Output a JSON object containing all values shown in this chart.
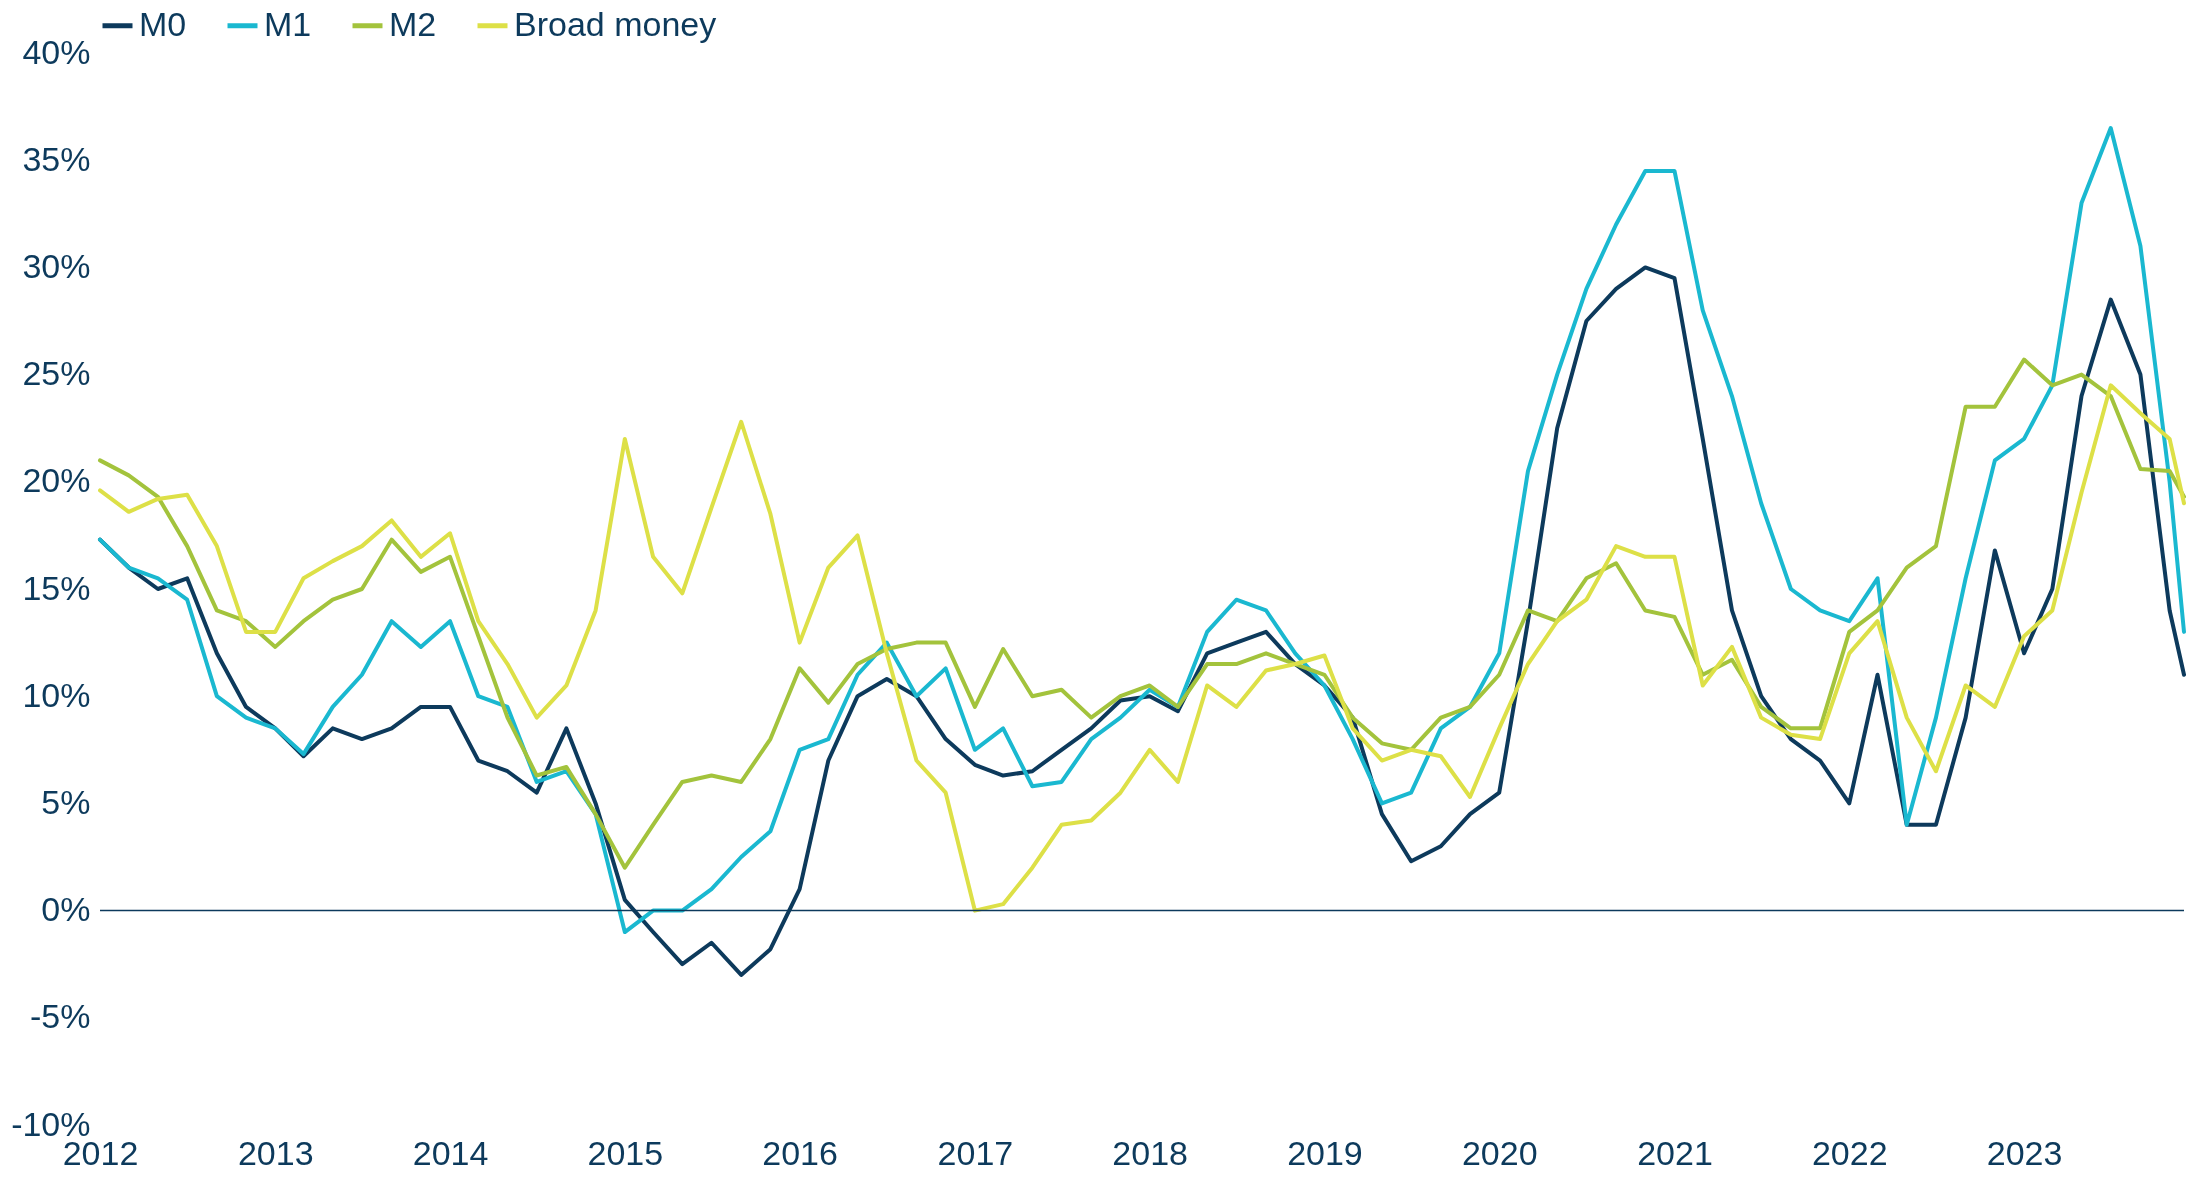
{
  "chart_data": {
    "type": "line",
    "x": [
      "2012-01",
      "2012-03",
      "2012-05",
      "2012-07",
      "2012-09",
      "2012-11",
      "2013-01",
      "2013-03",
      "2013-05",
      "2013-07",
      "2013-09",
      "2013-11",
      "2014-01",
      "2014-03",
      "2014-05",
      "2014-07",
      "2014-09",
      "2014-11",
      "2015-01",
      "2015-03",
      "2015-05",
      "2015-07",
      "2015-09",
      "2015-11",
      "2016-01",
      "2016-03",
      "2016-05",
      "2016-07",
      "2016-09",
      "2016-11",
      "2017-01",
      "2017-03",
      "2017-05",
      "2017-07",
      "2017-09",
      "2017-11",
      "2018-01",
      "2018-03",
      "2018-05",
      "2018-07",
      "2018-09",
      "2018-11",
      "2019-01",
      "2019-03",
      "2019-05",
      "2019-07",
      "2019-09",
      "2019-11",
      "2020-01",
      "2020-03",
      "2020-05",
      "2020-07",
      "2020-09",
      "2020-11",
      "2021-01",
      "2021-03",
      "2021-05",
      "2021-07",
      "2021-09",
      "2021-11",
      "2022-01",
      "2022-03",
      "2022-05",
      "2022-07",
      "2022-09",
      "2022-11",
      "2023-01",
      "2023-03",
      "2023-05",
      "2023-07",
      "2023-09",
      "2023-11",
      "2023-12"
    ],
    "series": [
      {
        "name": "M0",
        "color": "#0d3a5c",
        "values": [
          17.3,
          16.0,
          15.0,
          15.5,
          12.0,
          9.5,
          8.5,
          7.2,
          8.5,
          8.0,
          8.5,
          9.5,
          9.5,
          7.0,
          6.5,
          5.5,
          8.5,
          5.0,
          0.5,
          -1.0,
          -2.5,
          -1.5,
          -3.0,
          -1.8,
          1.0,
          7.0,
          10.0,
          10.8,
          10.0,
          8.0,
          6.8,
          6.3,
          6.5,
          7.5,
          8.5,
          9.8,
          10.0,
          9.3,
          12.0,
          12.5,
          13.0,
          11.5,
          10.5,
          9.0,
          4.5,
          2.3,
          3.0,
          4.5,
          5.5,
          13.5,
          22.5,
          27.5,
          29.0,
          30.0,
          29.5,
          22.0,
          14.0,
          10.0,
          8.0,
          7.0,
          5.0,
          11.0,
          4.0,
          4.0,
          9.0,
          16.8,
          12.0,
          15.0,
          24.0,
          28.5,
          25.0,
          14.0,
          11.0
        ]
      },
      {
        "name": "M1",
        "color": "#1ab8d0",
        "values": [
          17.3,
          16.0,
          15.5,
          14.5,
          10.0,
          9.0,
          8.5,
          7.3,
          9.5,
          11.0,
          13.5,
          12.3,
          13.5,
          10.0,
          9.5,
          6.0,
          6.5,
          4.5,
          -1.0,
          0.0,
          0.0,
          1.0,
          2.5,
          3.7,
          7.5,
          8.0,
          11.0,
          12.5,
          10.0,
          11.3,
          7.5,
          8.5,
          5.8,
          6.0,
          8.0,
          9.0,
          10.3,
          9.5,
          13.0,
          14.5,
          14.0,
          12.0,
          10.5,
          8.0,
          5.0,
          5.5,
          8.5,
          9.5,
          12.0,
          20.5,
          25.0,
          29.0,
          32.0,
          34.5,
          34.5,
          28.0,
          24.0,
          19.0,
          15.0,
          14.0,
          13.5,
          15.5,
          4.0,
          9.0,
          15.5,
          21.0,
          22.0,
          24.5,
          33.0,
          36.5,
          31.0,
          20.0,
          13.0
        ]
      },
      {
        "name": "M2",
        "color": "#a3c33c",
        "values": [
          21.0,
          20.3,
          19.3,
          17.0,
          14.0,
          13.5,
          12.3,
          13.5,
          14.5,
          15.0,
          17.3,
          15.8,
          16.5,
          12.8,
          9.0,
          6.3,
          6.7,
          4.5,
          2.0,
          4.0,
          6.0,
          6.3,
          6.0,
          8.0,
          11.3,
          9.7,
          11.5,
          12.2,
          12.5,
          12.5,
          9.5,
          12.2,
          10.0,
          10.3,
          9.0,
          10.0,
          10.5,
          9.5,
          11.5,
          11.5,
          12.0,
          11.5,
          11.0,
          9.0,
          7.8,
          7.5,
          9.0,
          9.5,
          11.0,
          14.0,
          13.5,
          15.5,
          16.2,
          14.0,
          13.7,
          11.0,
          11.7,
          9.5,
          8.5,
          8.5,
          13.0,
          14.0,
          16.0,
          17.0,
          23.5,
          23.5,
          25.7,
          24.5,
          25.0,
          24.0,
          20.6,
          20.5,
          19.3
        ]
      },
      {
        "name": "Broad money",
        "color": "#dde047",
        "values": [
          19.6,
          18.6,
          19.2,
          19.4,
          17.0,
          13.0,
          13.0,
          15.5,
          16.3,
          17.0,
          18.2,
          16.5,
          17.6,
          13.5,
          11.5,
          9.0,
          10.5,
          14.0,
          22.0,
          16.5,
          14.8,
          18.8,
          22.8,
          18.5,
          12.5,
          16.0,
          17.5,
          12.0,
          7.0,
          5.5,
          0.0,
          0.3,
          2.0,
          4.0,
          4.2,
          5.5,
          7.5,
          6.0,
          10.5,
          9.5,
          11.2,
          11.5,
          11.9,
          8.5,
          7.0,
          7.5,
          7.2,
          5.3,
          8.5,
          11.5,
          13.5,
          14.5,
          17.0,
          16.5,
          16.5,
          10.5,
          12.3,
          9.0,
          8.2,
          8.0,
          12.0,
          13.5,
          9.0,
          6.5,
          10.5,
          9.5,
          12.8,
          14.0,
          19.5,
          24.5,
          23.2,
          22.0,
          19.0
        ]
      }
    ],
    "xlim": [
      "2012-01",
      "2023-12"
    ],
    "xticks": [
      {
        "value": "2012",
        "label": "2012"
      },
      {
        "value": "2013",
        "label": "2013"
      },
      {
        "value": "2014",
        "label": "2014"
      },
      {
        "value": "2015",
        "label": "2015"
      },
      {
        "value": "2016",
        "label": "2016"
      },
      {
        "value": "2017",
        "label": "2017"
      },
      {
        "value": "2018",
        "label": "2018"
      },
      {
        "value": "2019",
        "label": "2019"
      },
      {
        "value": "2020",
        "label": "2020"
      },
      {
        "value": "2021",
        "label": "2021"
      },
      {
        "value": "2022",
        "label": "2022"
      },
      {
        "value": "2023",
        "label": "2023"
      }
    ],
    "ylim": [
      -10,
      40
    ],
    "yticks": [
      {
        "value": -10,
        "label": "-10%"
      },
      {
        "value": -5,
        "label": "-5%"
      },
      {
        "value": 0,
        "label": "0%"
      },
      {
        "value": 5,
        "label": "5%"
      },
      {
        "value": 10,
        "label": "10%"
      },
      {
        "value": 15,
        "label": "15%"
      },
      {
        "value": 20,
        "label": "20%"
      },
      {
        "value": 25,
        "label": "25%"
      },
      {
        "value": 30,
        "label": "30%"
      },
      {
        "value": 35,
        "label": "35%"
      },
      {
        "value": 40,
        "label": "40%"
      }
    ],
    "ref_lines": [
      {
        "axis": "y",
        "value": 0,
        "color": "#0d3a5c"
      }
    ],
    "grid": false,
    "legend": "top",
    "line_style": "solid"
  }
}
